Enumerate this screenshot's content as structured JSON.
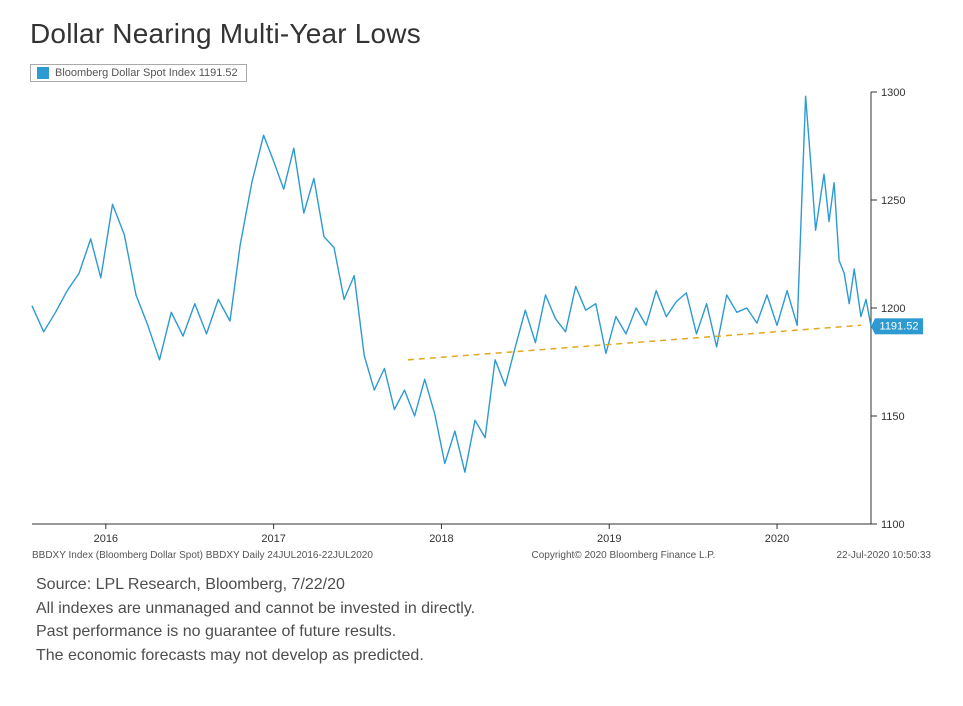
{
  "title": "Dollar Nearing Multi-Year Lows",
  "legend": {
    "label": "Bloomberg Dollar Spot Index 1191.52",
    "color": "#2d9ad1"
  },
  "chart": {
    "type": "line",
    "line_color": "#2d9ad1",
    "line_width": 1.4,
    "background_color": "#ffffff",
    "axis_color": "#333333",
    "ylim": [
      1100,
      1300
    ],
    "yticks": [
      1100,
      1150,
      1200,
      1250,
      1300
    ],
    "xlim_years": [
      2015.56,
      2020.56
    ],
    "xticks": [
      {
        "year": 2016,
        "label": "2016"
      },
      {
        "year": 2017,
        "label": "2017"
      },
      {
        "year": 2018,
        "label": "2018"
      },
      {
        "year": 2019,
        "label": "2019"
      },
      {
        "year": 2020,
        "label": "2020"
      }
    ],
    "current_value_badge": {
      "value": "1191.52",
      "bg": "#2d9ad1",
      "fg": "#ffffff"
    },
    "trendline": {
      "color": "#e3a820",
      "dash": "6,5",
      "width": 1.5,
      "points": [
        {
          "x": 2017.8,
          "y": 1176
        },
        {
          "x": 2020.5,
          "y": 1192
        }
      ]
    },
    "series": [
      {
        "x": 2015.56,
        "y": 1201
      },
      {
        "x": 2015.63,
        "y": 1189
      },
      {
        "x": 2015.7,
        "y": 1198
      },
      {
        "x": 2015.77,
        "y": 1208
      },
      {
        "x": 2015.84,
        "y": 1216
      },
      {
        "x": 2015.91,
        "y": 1232
      },
      {
        "x": 2015.97,
        "y": 1214
      },
      {
        "x": 2016.04,
        "y": 1248
      },
      {
        "x": 2016.11,
        "y": 1234
      },
      {
        "x": 2016.18,
        "y": 1206
      },
      {
        "x": 2016.25,
        "y": 1192
      },
      {
        "x": 2016.32,
        "y": 1176
      },
      {
        "x": 2016.39,
        "y": 1198
      },
      {
        "x": 2016.46,
        "y": 1187
      },
      {
        "x": 2016.53,
        "y": 1202
      },
      {
        "x": 2016.6,
        "y": 1188
      },
      {
        "x": 2016.67,
        "y": 1204
      },
      {
        "x": 2016.74,
        "y": 1194
      },
      {
        "x": 2016.8,
        "y": 1229
      },
      {
        "x": 2016.87,
        "y": 1258
      },
      {
        "x": 2016.94,
        "y": 1280
      },
      {
        "x": 2017.0,
        "y": 1268
      },
      {
        "x": 2017.06,
        "y": 1255
      },
      {
        "x": 2017.12,
        "y": 1274
      },
      {
        "x": 2017.18,
        "y": 1244
      },
      {
        "x": 2017.24,
        "y": 1260
      },
      {
        "x": 2017.3,
        "y": 1233
      },
      {
        "x": 2017.36,
        "y": 1228
      },
      {
        "x": 2017.42,
        "y": 1204
      },
      {
        "x": 2017.48,
        "y": 1215
      },
      {
        "x": 2017.54,
        "y": 1178
      },
      {
        "x": 2017.6,
        "y": 1162
      },
      {
        "x": 2017.66,
        "y": 1172
      },
      {
        "x": 2017.72,
        "y": 1153
      },
      {
        "x": 2017.78,
        "y": 1162
      },
      {
        "x": 2017.84,
        "y": 1150
      },
      {
        "x": 2017.9,
        "y": 1167
      },
      {
        "x": 2017.96,
        "y": 1151
      },
      {
        "x": 2018.02,
        "y": 1128
      },
      {
        "x": 2018.08,
        "y": 1143
      },
      {
        "x": 2018.14,
        "y": 1124
      },
      {
        "x": 2018.2,
        "y": 1148
      },
      {
        "x": 2018.26,
        "y": 1140
      },
      {
        "x": 2018.32,
        "y": 1176
      },
      {
        "x": 2018.38,
        "y": 1164
      },
      {
        "x": 2018.44,
        "y": 1182
      },
      {
        "x": 2018.5,
        "y": 1199
      },
      {
        "x": 2018.56,
        "y": 1184
      },
      {
        "x": 2018.62,
        "y": 1206
      },
      {
        "x": 2018.68,
        "y": 1195
      },
      {
        "x": 2018.74,
        "y": 1189
      },
      {
        "x": 2018.8,
        "y": 1210
      },
      {
        "x": 2018.86,
        "y": 1199
      },
      {
        "x": 2018.92,
        "y": 1202
      },
      {
        "x": 2018.98,
        "y": 1179
      },
      {
        "x": 2019.04,
        "y": 1196
      },
      {
        "x": 2019.1,
        "y": 1188
      },
      {
        "x": 2019.16,
        "y": 1200
      },
      {
        "x": 2019.22,
        "y": 1192
      },
      {
        "x": 2019.28,
        "y": 1208
      },
      {
        "x": 2019.34,
        "y": 1196
      },
      {
        "x": 2019.4,
        "y": 1203
      },
      {
        "x": 2019.46,
        "y": 1207
      },
      {
        "x": 2019.52,
        "y": 1188
      },
      {
        "x": 2019.58,
        "y": 1202
      },
      {
        "x": 2019.64,
        "y": 1182
      },
      {
        "x": 2019.7,
        "y": 1206
      },
      {
        "x": 2019.76,
        "y": 1198
      },
      {
        "x": 2019.82,
        "y": 1200
      },
      {
        "x": 2019.88,
        "y": 1193
      },
      {
        "x": 2019.94,
        "y": 1206
      },
      {
        "x": 2020.0,
        "y": 1192
      },
      {
        "x": 2020.06,
        "y": 1208
      },
      {
        "x": 2020.12,
        "y": 1192
      },
      {
        "x": 2020.17,
        "y": 1298
      },
      {
        "x": 2020.2,
        "y": 1268
      },
      {
        "x": 2020.23,
        "y": 1236
      },
      {
        "x": 2020.28,
        "y": 1262
      },
      {
        "x": 2020.31,
        "y": 1240
      },
      {
        "x": 2020.34,
        "y": 1258
      },
      {
        "x": 2020.37,
        "y": 1222
      },
      {
        "x": 2020.4,
        "y": 1216
      },
      {
        "x": 2020.43,
        "y": 1202
      },
      {
        "x": 2020.46,
        "y": 1218
      },
      {
        "x": 2020.5,
        "y": 1196
      },
      {
        "x": 2020.53,
        "y": 1204
      },
      {
        "x": 2020.56,
        "y": 1191.52
      }
    ],
    "footer_left": "BBDXY Index (Bloomberg Dollar Spot) BBDXY  Daily 24JUL2016-22JUL2020",
    "footer_center": "Copyright© 2020 Bloomberg Finance L.P.",
    "footer_right": "22-Jul-2020 10:50:33"
  },
  "disclaimer": [
    "Source: LPL Research, Bloomberg, 7/22/20",
    "All indexes are unmanaged and cannot be invested in directly.",
    "Past performance is no guarantee of future results.",
    "The economic forecasts may not develop as predicted."
  ]
}
